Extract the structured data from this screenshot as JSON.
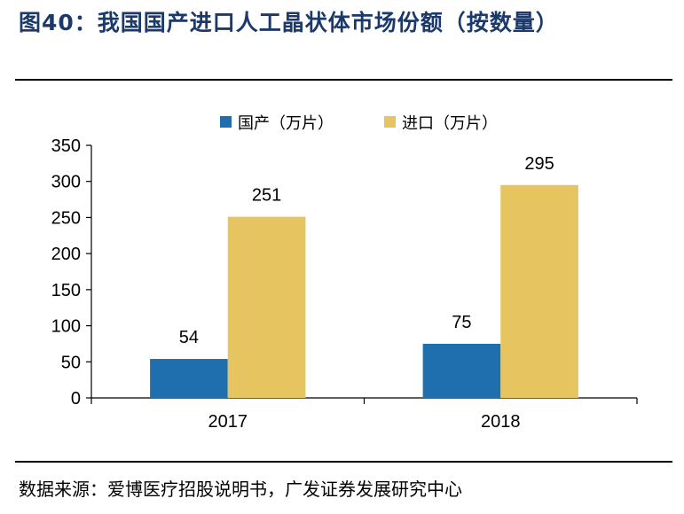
{
  "header": {
    "title": "图40：我国国产进口人工晶状体市场份额（按数量）"
  },
  "footer": {
    "source": "数据来源：爱博医疗招股说明书，广发证券发展研究中心"
  },
  "chart_data": {
    "type": "bar",
    "title": "",
    "xlabel": "",
    "ylabel": "",
    "categories": [
      "2017",
      "2018"
    ],
    "series": [
      {
        "name": "国产（万片）",
        "color": "#1f6fae",
        "values": [
          54,
          75
        ]
      },
      {
        "name": "进口（万片）",
        "color": "#e6c560",
        "values": [
          251,
          295
        ]
      }
    ],
    "ylim": [
      0,
      350
    ],
    "yticks": [
      0,
      50,
      100,
      150,
      200,
      250,
      300,
      350
    ],
    "grid": false,
    "legend_position": "top-center"
  }
}
